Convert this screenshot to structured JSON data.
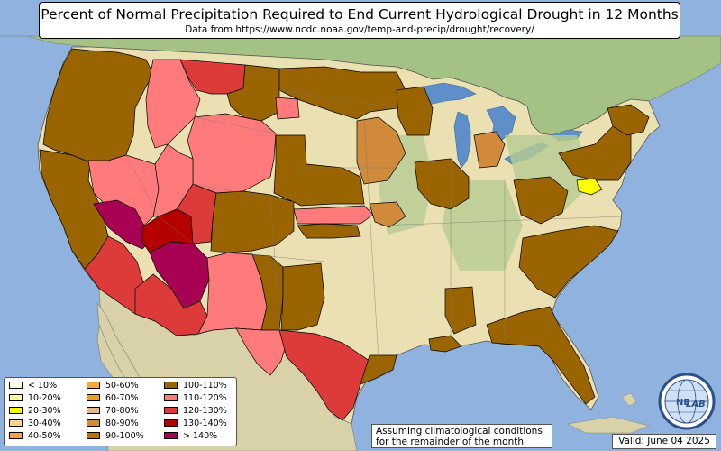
{
  "title": "Percent of Normal Precipitation Required to End Current Hydrological Drought in 12 Months",
  "subtitle": "Data from https://www.ncdc.noaa.gov/temp-and-precip/drought/recovery/",
  "legend": [
    {
      "label": "< 10%",
      "color": "#ffffe0"
    },
    {
      "label": "10-20%",
      "color": "#ffff99"
    },
    {
      "label": "20-30%",
      "color": "#ffff00"
    },
    {
      "label": "30-40%",
      "color": "#ffd28c"
    },
    {
      "label": "40-50%",
      "color": "#f5a640"
    },
    {
      "label": "50-60%",
      "color": "#f4a93c"
    },
    {
      "label": "60-70%",
      "color": "#f59a22"
    },
    {
      "label": "70-80%",
      "color": "#e8b88a"
    },
    {
      "label": "80-90%",
      "color": "#d08a3a"
    },
    {
      "label": "90-100%",
      "color": "#b87300"
    },
    {
      "label": "100-110%",
      "color": "#9a6400"
    },
    {
      "label": "110-120%",
      "color": "#ff7b7b"
    },
    {
      "label": "120-130%",
      "color": "#dd3a3a"
    },
    {
      "label": "130-140%",
      "color": "#b50000"
    },
    {
      "label": "> 140%",
      "color": "#a80052"
    }
  ],
  "note": {
    "line1": "Assuming climatological conditions",
    "line2": "for the remainder of the month"
  },
  "valid": "Valid: June 04 2025",
  "logo": {
    "text_a": "NE",
    "text_b": "LAB",
    "icon": "nexlab-globe-logo"
  },
  "colors": {
    "ocean": "#8fb2de",
    "land_green": "#a9c58a",
    "land_beige": "#ece2b4",
    "canada": "#9fbf7d",
    "mexico": "#d8d2a8",
    "lakes": "#5e8fc8"
  }
}
